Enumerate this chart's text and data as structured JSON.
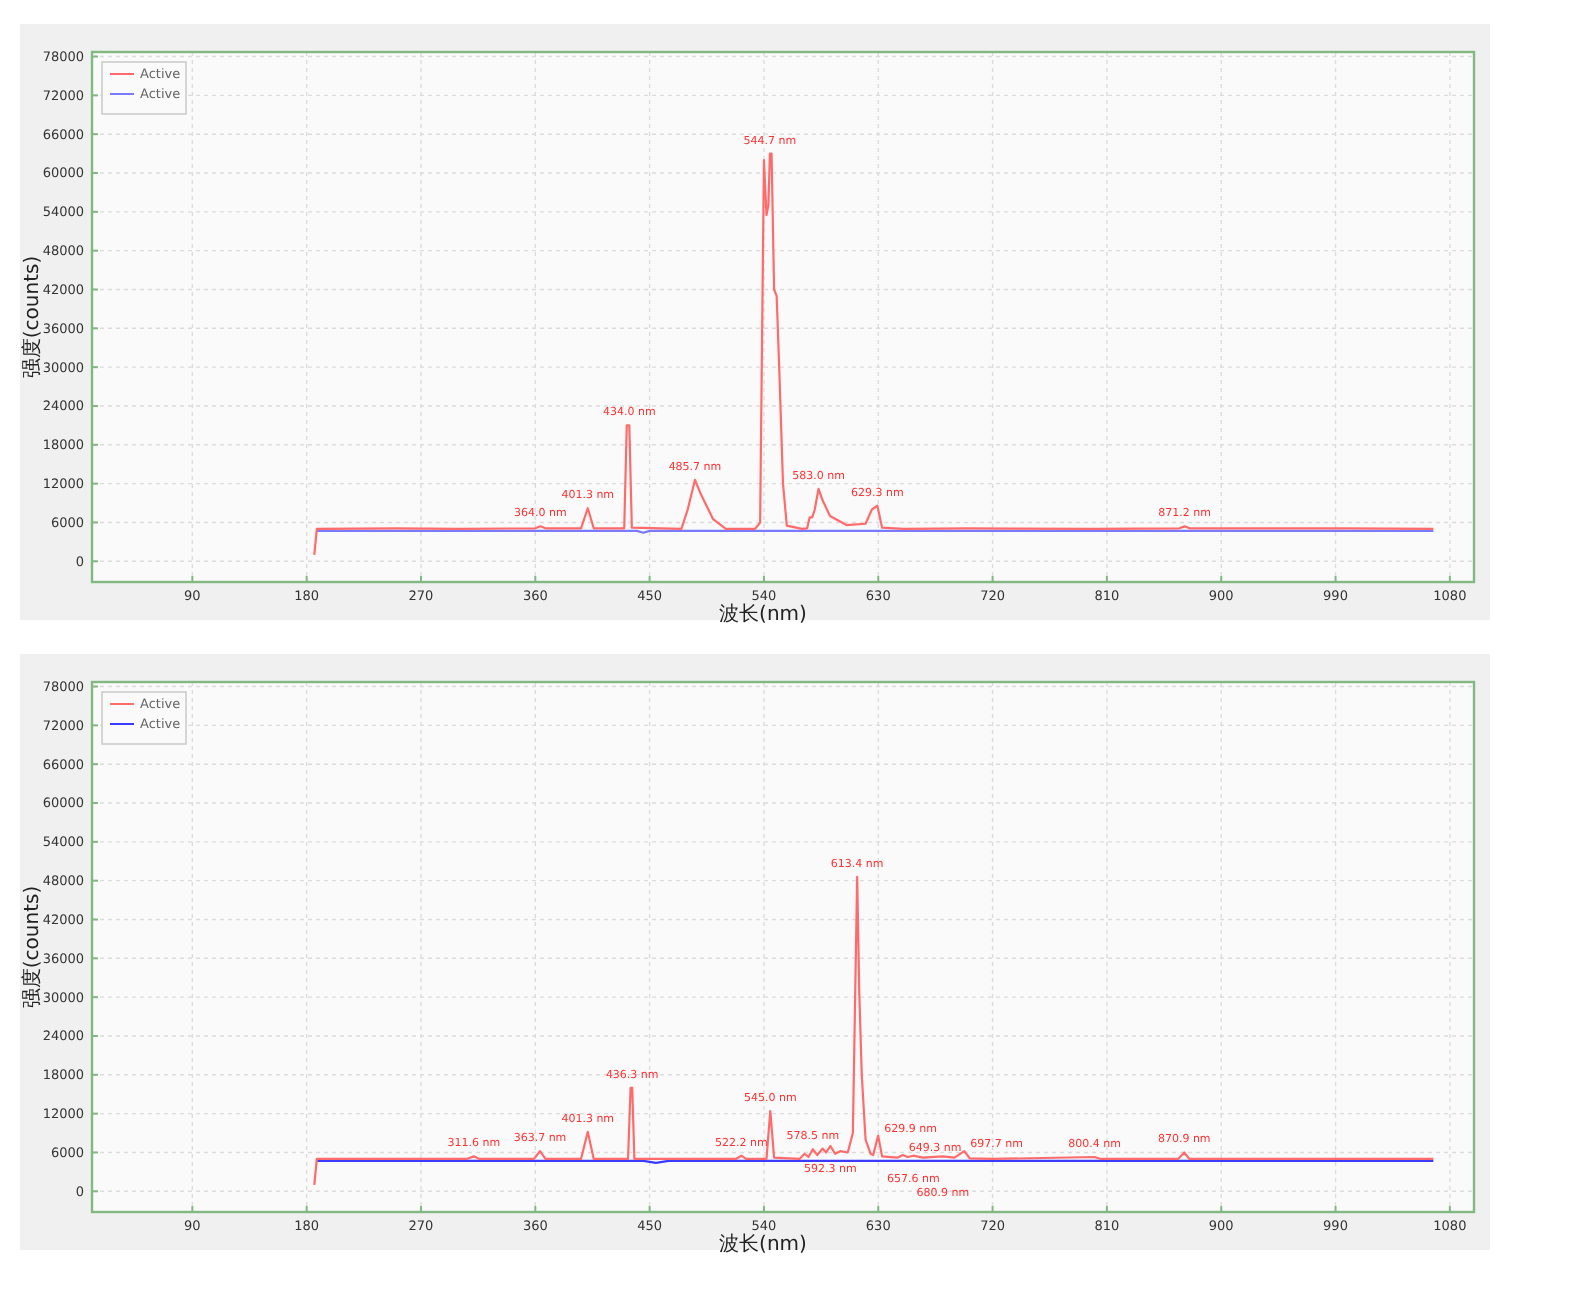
{
  "chart_data": [
    {
      "type": "line",
      "xlabel": "波长(nm)",
      "ylabel": "强度(counts)",
      "xlim": [
        11,
        1099
      ],
      "ylim": [
        -3200,
        78700
      ],
      "xticks": [
        90,
        180,
        270,
        360,
        450,
        540,
        630,
        720,
        810,
        900,
        990,
        1080
      ],
      "yticks": [
        0,
        6000,
        12000,
        18000,
        24000,
        30000,
        36000,
        42000,
        48000,
        54000,
        60000,
        66000,
        72000,
        78000
      ],
      "grid": true,
      "legend": "top left",
      "series": [
        {
          "name": "Active",
          "color": "#ff6b6b",
          "x": [
            186,
            188,
            250,
            300,
            360,
            364,
            368,
            396,
            401.3,
            406,
            430,
            432,
            434,
            436,
            475,
            480,
            485.7,
            490,
            500,
            510,
            533,
            537,
            540,
            542,
            543.5,
            544.7,
            546,
            548,
            550,
            552,
            555,
            558,
            570,
            574,
            576,
            578,
            580,
            583,
            586,
            592,
            605,
            620,
            625,
            629.3,
            633,
            650,
            700,
            800,
            867,
            871.2,
            875,
            1000,
            1067
          ],
          "values": [
            1000,
            5000,
            5100,
            5000,
            5100,
            5400,
            5100,
            5100,
            8200,
            5100,
            5100,
            21000,
            21000,
            5200,
            5000,
            8000,
            12600,
            10500,
            6500,
            5000,
            5000,
            6000,
            62000,
            53500,
            55000,
            63000,
            63000,
            42000,
            41000,
            30000,
            12000,
            5500,
            5000,
            5100,
            6800,
            6800,
            8000,
            11200,
            9500,
            7000,
            5600,
            5800,
            8000,
            8600,
            5200,
            5000,
            5100,
            5000,
            5100,
            5400,
            5100,
            5100,
            5000
          ]
        },
        {
          "name": "Active",
          "color": "#7a7aff",
          "x": [
            188,
            440,
            445,
            450,
            1067
          ],
          "values": [
            4700,
            4700,
            4400,
            4700,
            4700
          ]
        }
      ],
      "annotations": [
        {
          "text": "364.0 nm",
          "x": 364,
          "y": 5400
        },
        {
          "text": "401.3 nm",
          "x": 401.3,
          "y": 8200
        },
        {
          "text": "434.0 nm",
          "x": 434,
          "y": 21000
        },
        {
          "text": "485.7 nm",
          "x": 485.7,
          "y": 12600
        },
        {
          "text": "544.7 nm",
          "x": 544.7,
          "y": 63000
        },
        {
          "text": "583.0 nm",
          "x": 583,
          "y": 11200
        },
        {
          "text": "629.3 nm",
          "x": 629.3,
          "y": 8600
        },
        {
          "text": "871.2 nm",
          "x": 871.2,
          "y": 5400
        }
      ]
    },
    {
      "type": "line",
      "xlabel": "波长(nm)",
      "ylabel": "强度(counts)",
      "xlim": [
        11,
        1099
      ],
      "ylim": [
        -3200,
        78700
      ],
      "xticks": [
        90,
        180,
        270,
        360,
        450,
        540,
        630,
        720,
        810,
        900,
        990,
        1080
      ],
      "yticks": [
        0,
        6000,
        12000,
        18000,
        24000,
        30000,
        36000,
        42000,
        48000,
        54000,
        60000,
        66000,
        72000,
        78000
      ],
      "grid": true,
      "legend": "top left",
      "series": [
        {
          "name": "Active",
          "color": "#ff6b6b",
          "x": [
            186,
            188,
            306,
            311.6,
            316,
            359,
            363.7,
            368,
            396,
            401.3,
            406,
            433,
            435,
            436.3,
            438,
            518,
            522.2,
            526,
            542,
            545,
            548,
            568,
            572,
            575,
            578.5,
            582,
            586,
            589,
            592.3,
            596,
            600,
            606,
            610,
            613.4,
            615,
            617,
            620,
            624,
            626,
            629.9,
            633,
            645,
            649.3,
            653,
            657.6,
            665,
            680.9,
            690,
            697.7,
            702,
            720,
            800.4,
            805,
            866,
            870.9,
            875,
            1067
          ],
          "values": [
            1000,
            5000,
            5000,
            5400,
            5000,
            5000,
            6200,
            5000,
            5000,
            9200,
            5000,
            5000,
            16000,
            16000,
            5000,
            5000,
            5500,
            5000,
            5000,
            12400,
            5200,
            5000,
            5800,
            5300,
            6500,
            5600,
            6600,
            6000,
            7000,
            5800,
            6200,
            6000,
            9000,
            48600,
            31000,
            18000,
            8000,
            5800,
            5600,
            8600,
            5400,
            5200,
            5600,
            5300,
            5500,
            5200,
            5400,
            5200,
            6200,
            5100,
            5000,
            5300,
            5000,
            5000,
            6000,
            5000,
            5000
          ]
        },
        {
          "name": "Active",
          "color": "#3b3bff",
          "x": [
            188,
            445,
            455,
            465,
            1067
          ],
          "values": [
            4700,
            4700,
            4400,
            4700,
            4700
          ]
        }
      ],
      "annotations": [
        {
          "text": "311.6 nm",
          "x": 311.6,
          "y": 5400
        },
        {
          "text": "363.7 nm",
          "x": 363.7,
          "y": 6200
        },
        {
          "text": "401.3 nm",
          "x": 401.3,
          "y": 9200
        },
        {
          "text": "436.3 nm",
          "x": 436.3,
          "y": 16000
        },
        {
          "text": "522.2 nm",
          "x": 522.2,
          "y": 5500
        },
        {
          "text": "545.0 nm",
          "x": 545,
          "y": 12400
        },
        {
          "text": "578.5 nm",
          "x": 578.5,
          "y": 6500
        },
        {
          "text": "592.3 nm",
          "x": 592.3,
          "y": 7000
        },
        {
          "text": "613.4 nm",
          "x": 613.4,
          "y": 48600
        },
        {
          "text": "629.9 nm",
          "x": 629.9,
          "y": 8600
        },
        {
          "text": "649.3 nm",
          "x": 649.3,
          "y": 5600
        },
        {
          "text": "657.6 nm",
          "x": 657.6,
          "y": 5500
        },
        {
          "text": "680.9 nm",
          "x": 680.9,
          "y": 5400
        },
        {
          "text": "697.7 nm",
          "x": 697.7,
          "y": 6200
        },
        {
          "text": "800.4 nm",
          "x": 800.4,
          "y": 5300
        },
        {
          "text": "870.9 nm",
          "x": 870.9,
          "y": 6000
        }
      ]
    }
  ]
}
